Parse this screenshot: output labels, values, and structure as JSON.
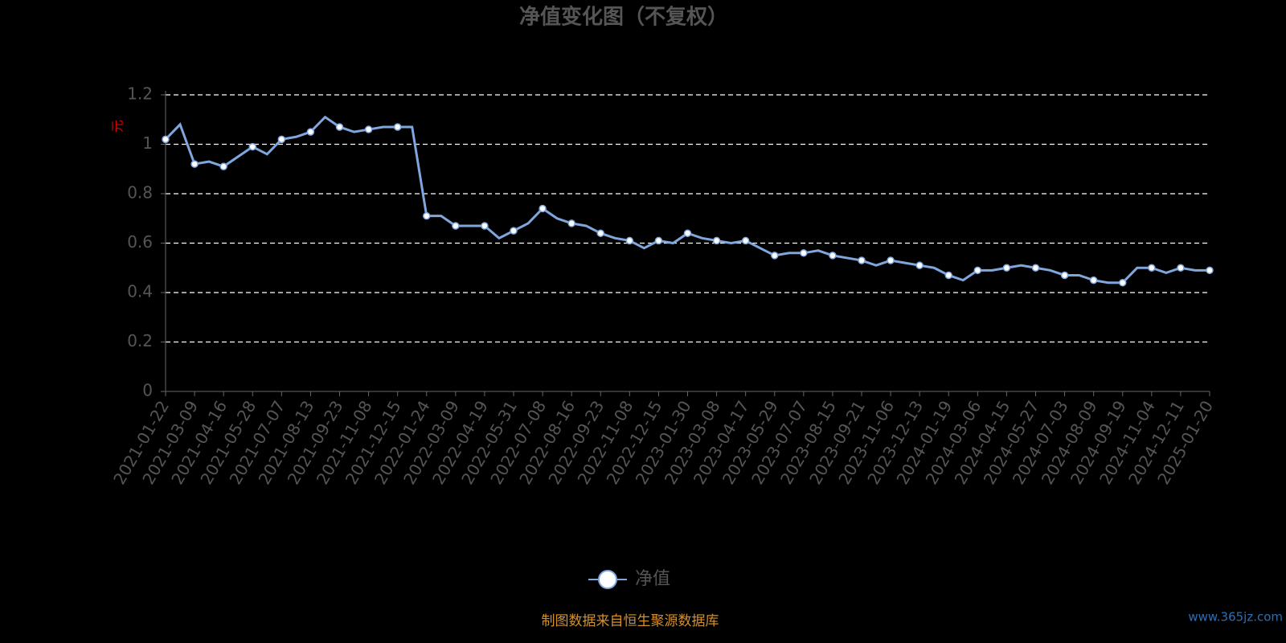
{
  "chart_data": {
    "type": "line",
    "title": "净值变化图（不复权）",
    "y_label": "元",
    "categories": [
      "2021-01-22",
      null,
      "2021-03-09",
      null,
      "2021-04-16",
      null,
      "2021-05-28",
      null,
      "2021-07-07",
      null,
      "2021-08-13",
      null,
      "2021-09-23",
      null,
      "2021-11-08",
      null,
      "2021-12-15",
      null,
      "2022-01-24",
      null,
      "2022-03-09",
      null,
      "2022-04-19",
      null,
      "2022-05-31",
      null,
      "2022-07-08",
      null,
      "2022-08-16",
      null,
      "2022-09-23",
      null,
      "2022-11-08",
      null,
      "2022-12-15",
      null,
      "2023-01-30",
      null,
      "2023-03-08",
      null,
      "2023-04-17",
      null,
      "2023-05-29",
      null,
      "2023-07-07",
      null,
      "2023-08-15",
      null,
      "2023-09-21",
      null,
      "2023-11-06",
      null,
      "2023-12-13",
      null,
      "2024-01-19",
      null,
      "2024-03-06",
      null,
      "2024-04-15",
      null,
      "2024-05-27",
      null,
      "2024-07-03",
      null,
      "2024-08-09",
      null,
      "2024-09-19",
      null,
      "2024-11-04",
      null,
      "2024-12-11",
      null,
      "2025-01-20"
    ],
    "series": [
      {
        "name": "净值",
        "color": "#7fa6dd",
        "values": [
          1.02,
          1.08,
          0.92,
          0.93,
          0.91,
          0.95,
          0.99,
          0.96,
          1.02,
          1.03,
          1.05,
          1.11,
          1.07,
          1.05,
          1.06,
          1.07,
          1.07,
          1.07,
          0.71,
          0.71,
          0.67,
          0.67,
          0.67,
          0.62,
          0.65,
          0.68,
          0.74,
          0.7,
          0.68,
          0.67,
          0.64,
          0.62,
          0.61,
          0.58,
          0.61,
          0.6,
          0.64,
          0.62,
          0.61,
          0.6,
          0.61,
          0.58,
          0.55,
          0.56,
          0.56,
          0.57,
          0.55,
          0.54,
          0.53,
          0.51,
          0.53,
          0.52,
          0.51,
          0.5,
          0.47,
          0.45,
          0.49,
          0.49,
          0.5,
          0.51,
          0.5,
          0.49,
          0.47,
          0.47,
          0.45,
          0.44,
          0.44,
          0.5,
          0.5,
          0.48,
          0.5,
          0.49,
          0.49
        ]
      }
    ],
    "ylim": [
      0,
      1.2
    ],
    "yticks": [
      0,
      0.2,
      0.4,
      0.6,
      0.8,
      1,
      1.2
    ],
    "grid": true,
    "source": "制图数据来自恒生聚源数据库",
    "watermark": "www.365jz.com"
  }
}
